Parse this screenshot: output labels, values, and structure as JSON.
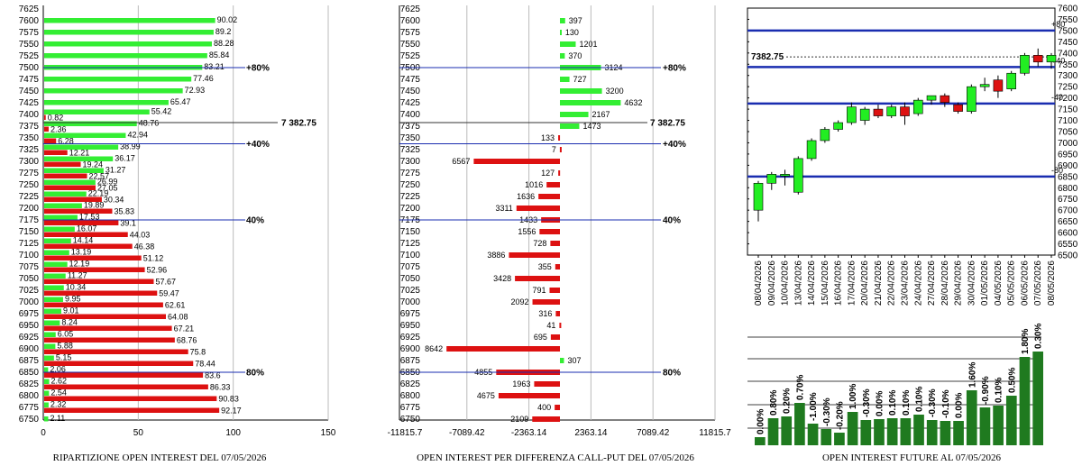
{
  "colors": {
    "call": "#33ee33",
    "put": "#dd1111",
    "diff_pos": "#33ee33",
    "diff_neg": "#dd1111",
    "candle_up": "#22ee22",
    "candle_down": "#dd1111",
    "ref_line": "#1a2db0",
    "bar_green": "#1f7a1f"
  },
  "chart_data": [
    {
      "type": "bar",
      "orientation": "horizontal",
      "title": "RIPARTIZIONE OPEN INTEREST DEL 07/05/2026",
      "categories": [
        "7625",
        "7600",
        "7575",
        "7550",
        "7525",
        "7500",
        "7475",
        "7450",
        "7425",
        "7400",
        "7375",
        "7350",
        "7325",
        "7300",
        "7275",
        "7250",
        "7225",
        "7200",
        "7175",
        "7150",
        "7125",
        "7100",
        "7075",
        "7050",
        "7025",
        "7000",
        "6975",
        "6950",
        "6925",
        "6900",
        "6875",
        "6850",
        "6825",
        "6800",
        "6775",
        "6750"
      ],
      "series": [
        {
          "values": [
            null,
            90.02,
            89.2,
            88.28,
            85.84,
            83.21,
            77.46,
            72.93,
            65.47,
            55.42,
            48.76,
            42.94,
            38.99,
            36.17,
            31.27,
            26.99,
            22.19,
            19.89,
            17.53,
            16.07,
            14.14,
            13.19,
            12.19,
            11.27,
            10.34,
            9.95,
            9.01,
            8.24,
            6.05,
            5.88,
            5.15,
            2.06,
            2.62,
            2.54,
            2.32,
            2.11
          ]
        },
        {
          "values": [
            null,
            null,
            null,
            null,
            null,
            null,
            null,
            null,
            null,
            0.82,
            2.36,
            6.28,
            12.21,
            19.24,
            22.57,
            27.05,
            30.34,
            35.83,
            39.1,
            44.03,
            46.38,
            51.12,
            52.96,
            57.67,
            59.47,
            62.61,
            64.08,
            67.21,
            68.76,
            75.8,
            78.44,
            83.6,
            86.33,
            90.83,
            92.17,
            null
          ]
        }
      ],
      "xlim": [
        0,
        150
      ],
      "xticks": [
        "0",
        "50",
        "100",
        "150"
      ],
      "ref_lines": [
        {
          "at": 7500,
          "label": "+80%"
        },
        {
          "at": 7382.75,
          "label": "7 382.75"
        },
        {
          "at": 7337.5,
          "label": "+40%"
        },
        {
          "at": 7175,
          "label": "40%"
        },
        {
          "at": 6850,
          "label": "80%"
        }
      ]
    },
    {
      "type": "bar",
      "orientation": "horizontal",
      "title": "OPEN INTEREST PER DIFFERENZA CALL-PUT  DEL 07/05/2026",
      "categories": [
        "7625",
        "7600",
        "7575",
        "7550",
        "7525",
        "7500",
        "7475",
        "7450",
        "7425",
        "7400",
        "7375",
        "7350",
        "7325",
        "7300",
        "7275",
        "7250",
        "7225",
        "7200",
        "7175",
        "7150",
        "7125",
        "7100",
        "7075",
        "7050",
        "7025",
        "7000",
        "6975",
        "6950",
        "6925",
        "6900",
        "6875",
        "6850",
        "6825",
        "6800",
        "6775",
        "6750"
      ],
      "values": [
        null,
        397,
        130,
        1201,
        370,
        3124,
        727,
        3200,
        4632,
        2167,
        1473,
        -133,
        -7,
        -6567,
        -127,
        -1016,
        -1636,
        -3311,
        -1433,
        -1556,
        -728,
        -3886,
        -355,
        -3428,
        -791,
        -2092,
        -316,
        -41,
        -695,
        -8642,
        307,
        -4855,
        -1963,
        -4675,
        -400,
        -2109
      ],
      "data_labels": [
        "",
        "397",
        "130",
        "1201",
        "370",
        "3124",
        "727",
        "3200",
        "4632",
        "2167",
        "1473",
        "133",
        "7",
        "6567",
        "127",
        "1016",
        "1636",
        "3311",
        "1433",
        "1556",
        "728",
        "3886",
        "355",
        "3428",
        "791",
        "2092",
        "316",
        "41",
        "695",
        "8642",
        "307",
        "4855",
        "1963",
        "4675",
        "400",
        "2109"
      ],
      "xlim": [
        -11815.7,
        11815.7
      ],
      "xticks": [
        "-11815.7",
        "-7089.42",
        "-2363.14",
        "2363.14",
        "7089.42",
        "11815.7"
      ],
      "ref_lines": [
        {
          "at": 7500,
          "label": "+80%"
        },
        {
          "at": 7382.75,
          "label": "7 382.75"
        },
        {
          "at": 7337.5,
          "label": "+40%"
        },
        {
          "at": 7175,
          "label": "40%"
        },
        {
          "at": 6850,
          "label": "80%"
        }
      ]
    },
    {
      "type": "candlestick",
      "title": "",
      "categories": [
        "08/04/2026",
        "09/04/2026",
        "10/04/2026",
        "13/04/2026",
        "14/04/2026",
        "15/04/2026",
        "16/04/2026",
        "17/04/2026",
        "20/04/2026",
        "21/04/2026",
        "22/04/2026",
        "23/04/2026",
        "24/04/2026",
        "27/04/2026",
        "28/04/2026",
        "29/04/2026",
        "30/04/2026",
        "01/05/2026",
        "04/05/2026",
        "05/05/2026",
        "06/05/2026",
        "07/05/2026",
        "08/05/2026"
      ],
      "ohlc": [
        {
          "o": 6700,
          "h": 6830,
          "l": 6650,
          "c": 6820
        },
        {
          "o": 6820,
          "h": 6870,
          "l": 6790,
          "c": 6860
        },
        {
          "o": 6860,
          "h": 6880,
          "l": 6810,
          "c": 6860
        },
        {
          "o": 6780,
          "h": 6940,
          "l": 6770,
          "c": 6930
        },
        {
          "o": 6930,
          "h": 7020,
          "l": 6920,
          "c": 7010
        },
        {
          "o": 7010,
          "h": 7070,
          "l": 7000,
          "c": 7060
        },
        {
          "o": 7060,
          "h": 7100,
          "l": 7050,
          "c": 7090
        },
        {
          "o": 7090,
          "h": 7180,
          "l": 7080,
          "c": 7160
        },
        {
          "o": 7100,
          "h": 7160,
          "l": 7080,
          "c": 7150
        },
        {
          "o": 7150,
          "h": 7170,
          "l": 7110,
          "c": 7120
        },
        {
          "o": 7120,
          "h": 7170,
          "l": 7110,
          "c": 7160
        },
        {
          "o": 7160,
          "h": 7180,
          "l": 7080,
          "c": 7120
        },
        {
          "o": 7130,
          "h": 7200,
          "l": 7120,
          "c": 7190
        },
        {
          "o": 7190,
          "h": 7210,
          "l": 7170,
          "c": 7210
        },
        {
          "o": 7210,
          "h": 7220,
          "l": 7160,
          "c": 7180
        },
        {
          "o": 7170,
          "h": 7180,
          "l": 7130,
          "c": 7140
        },
        {
          "o": 7140,
          "h": 7260,
          "l": 7130,
          "c": 7250
        },
        {
          "o": 7250,
          "h": 7290,
          "l": 7230,
          "c": 7260
        },
        {
          "o": 7280,
          "h": 7300,
          "l": 7200,
          "c": 7230
        },
        {
          "o": 7240,
          "h": 7320,
          "l": 7230,
          "c": 7310
        },
        {
          "o": 7310,
          "h": 7400,
          "l": 7300,
          "c": 7390
        },
        {
          "o": 7390,
          "h": 7420,
          "l": 7340,
          "c": 7360
        },
        {
          "o": 7360,
          "h": 7400,
          "l": 7330,
          "c": 7390
        }
      ],
      "ylim": [
        6500,
        7625
      ],
      "yticks": [
        "7600",
        "7550",
        "7500",
        "7450",
        "7400",
        "7350",
        "7300",
        "7250",
        "7200",
        "7150",
        "7100",
        "7050",
        "7000",
        "6950",
        "6900",
        "6850",
        "6800",
        "6750",
        "6700",
        "6650",
        "6600",
        "6550",
        "6500"
      ],
      "hlines": [
        {
          "at": 7500,
          "label": "+80"
        },
        {
          "at": 7337.5,
          "label": "+40"
        },
        {
          "at": 7175,
          "label": "-40"
        },
        {
          "at": 6850,
          "label": "-80"
        }
      ],
      "last_price_label": "7382.75",
      "last_price": 7382.75
    },
    {
      "type": "bar",
      "title": "OPEN INTEREST FUTURE AL 07/05/2026",
      "values": [
        0.0,
        0.8,
        0.2,
        0.7,
        -1.0,
        -0.3,
        -0.2,
        1.0,
        -0.3,
        0.0,
        0.1,
        0.1,
        0.1,
        -0.3,
        -0.1,
        0.0,
        1.6,
        -0.9,
        0.1,
        0.5,
        1.8,
        0.3
      ],
      "data_labels": [
        "0.00%",
        "0.80%",
        "0.20%",
        "0.70%",
        "-1.00%",
        "-0.30%",
        "-0.20%",
        "1.00%",
        "-0.30%",
        "0.00%",
        "0.10%",
        "0.10%",
        "0.10%",
        "-0.30%",
        "-0.10%",
        "0.00%",
        "1.60%",
        "-0.90%",
        "0.10%",
        "0.50%",
        "1.80%",
        "0.30%"
      ],
      "heights": [
        9,
        30,
        32,
        47,
        24,
        18,
        14,
        37,
        28,
        29,
        30,
        30,
        34,
        28,
        27,
        27,
        61,
        42,
        44,
        55,
        98,
        104
      ]
    }
  ]
}
